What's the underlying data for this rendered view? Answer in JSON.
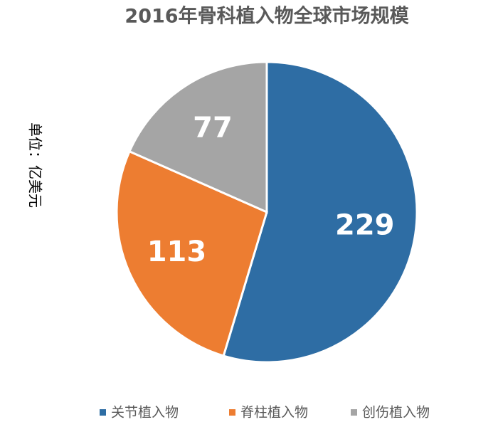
{
  "chart_data": {
    "type": "pie",
    "title": "2016年骨科植入物全球市场规模",
    "y_label": "单位：亿美元",
    "categories": [
      "关节植入物",
      "脊柱植入物",
      "创伤植入物"
    ],
    "values": [
      229,
      113,
      77
    ],
    "colors": [
      "#2e6da4",
      "#ed7d31",
      "#a5a5a5"
    ],
    "legend": "bottom"
  }
}
